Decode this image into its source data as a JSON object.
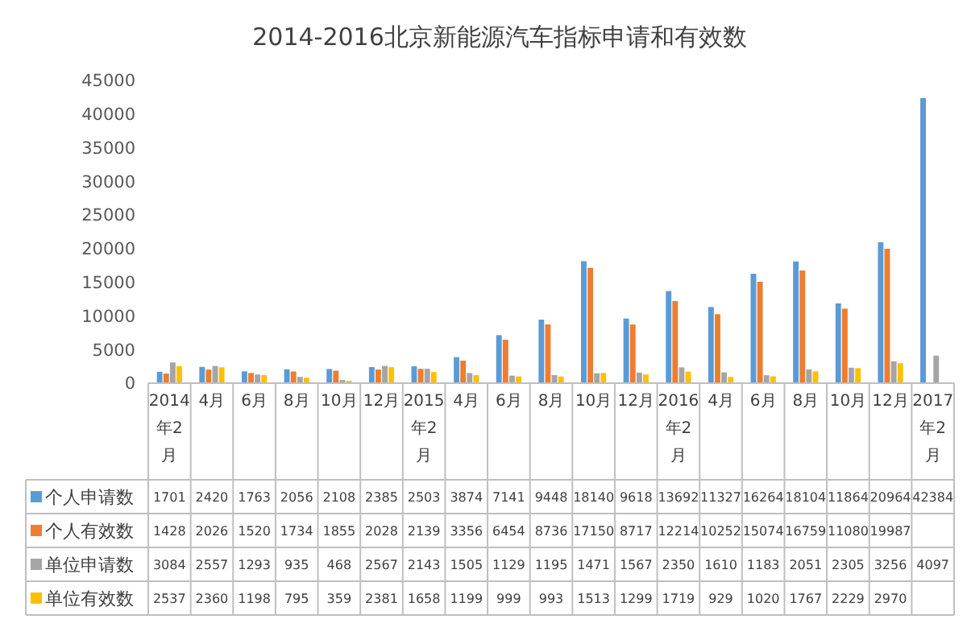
{
  "chart_data": {
    "type": "bar",
    "title": "2014-2016北京新能源汽车指标申请和有效数",
    "categories": [
      "2014年2月",
      "4月",
      "6月",
      "8月",
      "10月",
      "12月",
      "2015年2月",
      "4月",
      "6月",
      "8月",
      "10月",
      "12月",
      "2016年2月",
      "4月",
      "6月",
      "8月",
      "10月",
      "12月",
      "2017年2月"
    ],
    "series": [
      {
        "name": "个人申请数",
        "color": "#5b9bd5",
        "values": [
          1701,
          2420,
          1763,
          2056,
          2108,
          2385,
          2503,
          3874,
          7141,
          9448,
          18140,
          9618,
          13692,
          11327,
          16264,
          18104,
          11864,
          20964,
          42384
        ]
      },
      {
        "name": "个人有效数",
        "color": "#ed7d31",
        "values": [
          1428,
          2026,
          1520,
          1734,
          1855,
          2028,
          2139,
          3356,
          6454,
          8736,
          17150,
          8717,
          12214,
          10252,
          15074,
          16759,
          11080,
          19987,
          null
        ]
      },
      {
        "name": "单位申请数",
        "color": "#a5a5a5",
        "values": [
          3084,
          2557,
          1293,
          935,
          468,
          2567,
          2143,
          1505,
          1129,
          1195,
          1471,
          1567,
          2350,
          1610,
          1183,
          2051,
          2305,
          3256,
          4097
        ]
      },
      {
        "name": "单位有效数",
        "color": "#ffc000",
        "values": [
          2537,
          2360,
          1198,
          795,
          359,
          2381,
          1658,
          1199,
          999,
          993,
          1513,
          1299,
          1719,
          929,
          1020,
          1767,
          2229,
          2970,
          null
        ]
      }
    ],
    "ylim": [
      0,
      45000
    ],
    "yticks": [
      0,
      5000,
      10000,
      15000,
      20000,
      25000,
      30000,
      35000,
      40000,
      45000
    ],
    "grid": false,
    "legend": "bottom",
    "data_labels": true
  }
}
